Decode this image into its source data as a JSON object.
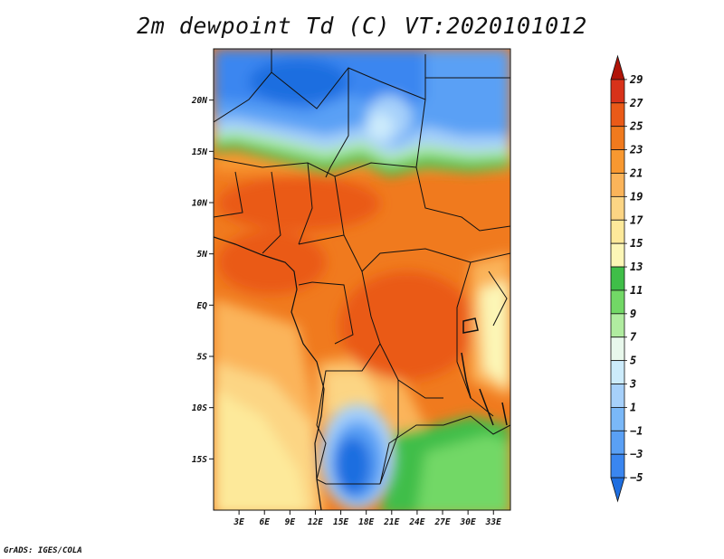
{
  "title": "2m dewpoint Td (C) VT:2020101012",
  "credit": "GrADS: IGES/COLA",
  "map": {
    "lat_range": [
      -20,
      25
    ],
    "lon_range": [
      0,
      35
    ],
    "lat_tick_values": [
      20,
      15,
      10,
      5,
      0,
      -5,
      -10,
      -15
    ],
    "lat_tick_labels": [
      "20N",
      "15N",
      "10N",
      "5N",
      "EQ",
      "5S",
      "10S",
      "15S"
    ],
    "lon_tick_values": [
      3,
      6,
      9,
      12,
      15,
      18,
      21,
      24,
      27,
      30,
      33
    ],
    "lon_tick_labels": [
      "3E",
      "6E",
      "9E",
      "12E",
      "15E",
      "18E",
      "21E",
      "24E",
      "27E",
      "30E",
      "33E"
    ]
  },
  "colorbar": {
    "levels": [
      -5,
      -3,
      -1,
      1,
      3,
      5,
      7,
      9,
      11,
      13,
      15,
      17,
      19,
      21,
      23,
      25,
      27,
      29
    ],
    "labels": [
      "29",
      "27",
      "25",
      "23",
      "21",
      "19",
      "17",
      "15",
      "13",
      "11",
      "9",
      "7",
      "5",
      "3",
      "1",
      "−1",
      "−3",
      "−5"
    ],
    "colors": [
      "#1e6ee0",
      "#3a86f0",
      "#5aa0f5",
      "#7ab8f8",
      "#a6d0fa",
      "#ccebfb",
      "#e8f8ec",
      "#b0eca0",
      "#72d866",
      "#3fbe48",
      "#fcf6b6",
      "#fde99a",
      "#fcd584",
      "#fbb45a",
      "#f89830",
      "#f07a1e",
      "#ea5a18",
      "#d8321a",
      "#b01408"
    ]
  }
}
